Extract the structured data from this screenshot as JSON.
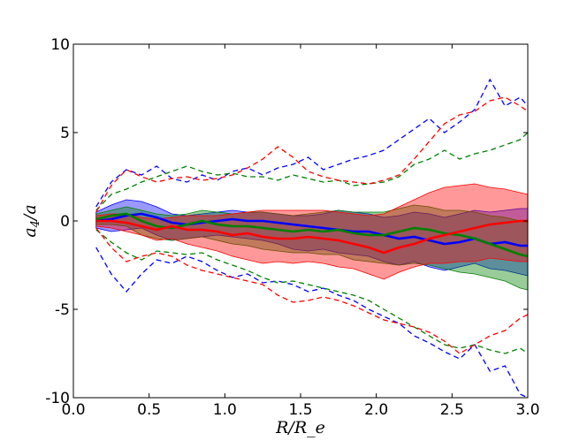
{
  "chart_data": {
    "type": "line",
    "xlabel": "R/R_e",
    "ylabel": "a_4/a",
    "xlim": [
      0.0,
      3.0
    ],
    "ylim": [
      -10,
      10
    ],
    "xticks": [
      0.0,
      0.5,
      1.0,
      1.5,
      2.0,
      2.5,
      3.0
    ],
    "xtick_labels": [
      "0.0",
      "0.5",
      "1.0",
      "1.5",
      "2.0",
      "2.5",
      "3.0"
    ],
    "yticks": [
      -10,
      -5,
      0,
      5,
      10
    ],
    "ytick_labels": [
      "-10",
      "-5",
      "0",
      "5",
      "10"
    ],
    "grid": false,
    "legend": "none",
    "series": [
      {
        "color": "#0000ff",
        "x": [
          0.15,
          0.25,
          0.35,
          0.45,
          0.55,
          0.65,
          0.75,
          0.85,
          0.95,
          1.05,
          1.15,
          1.25,
          1.35,
          1.45,
          1.55,
          1.65,
          1.75,
          1.85,
          1.95,
          2.05,
          2.15,
          2.25,
          2.35,
          2.45,
          2.55,
          2.65,
          2.75,
          2.85,
          2.95,
          3.0
        ],
        "median": [
          0.0,
          0.1,
          0.3,
          0.4,
          0.2,
          -0.1,
          -0.2,
          -0.1,
          0.0,
          0.1,
          0.0,
          0.0,
          -0.1,
          -0.2,
          -0.3,
          -0.4,
          -0.5,
          -0.6,
          -0.6,
          -0.8,
          -1.0,
          -0.9,
          -1.1,
          -1.3,
          -1.2,
          -1.0,
          -1.3,
          -1.2,
          -1.4,
          -1.4
        ],
        "band_low": [
          -0.4,
          -0.6,
          -0.5,
          -0.4,
          -0.8,
          -1.1,
          -1.0,
          -0.9,
          -0.8,
          -0.9,
          -1.0,
          -1.1,
          -1.3,
          -1.6,
          -1.7,
          -1.6,
          -1.8,
          -1.9,
          -2.0,
          -2.3,
          -2.5,
          -2.3,
          -2.6,
          -2.8,
          -2.6,
          -2.4,
          -2.7,
          -2.8,
          -3.0,
          -3.1
        ],
        "band_high": [
          0.5,
          0.9,
          1.2,
          1.1,
          0.8,
          0.4,
          0.3,
          0.4,
          0.5,
          0.6,
          0.5,
          0.5,
          0.4,
          0.3,
          0.3,
          0.4,
          0.6,
          0.5,
          0.4,
          0.2,
          0.3,
          0.5,
          0.4,
          0.2,
          0.4,
          0.6,
          0.5,
          0.6,
          0.7,
          0.7
        ],
        "upper_dashed": [
          0.8,
          2.2,
          2.9,
          2.6,
          3.1,
          2.4,
          2.2,
          2.6,
          2.3,
          2.8,
          3.0,
          2.6,
          3.0,
          3.2,
          3.6,
          2.9,
          3.2,
          3.5,
          3.7,
          4.0,
          4.6,
          5.2,
          5.8,
          5.0,
          5.6,
          6.3,
          8.0,
          6.5,
          7.0,
          6.5
        ],
        "lower_dashed": [
          -1.5,
          -3.0,
          -4.0,
          -3.0,
          -2.2,
          -2.4,
          -2.0,
          -2.3,
          -2.8,
          -3.2,
          -3.0,
          -3.5,
          -3.4,
          -3.6,
          -4.0,
          -3.8,
          -4.2,
          -4.5,
          -5.0,
          -5.4,
          -5.8,
          -6.5,
          -6.9,
          -7.4,
          -7.8,
          -7.0,
          -8.5,
          -8.2,
          -9.8,
          -10.0
        ]
      },
      {
        "color": "#008000",
        "x": [
          0.15,
          0.25,
          0.35,
          0.45,
          0.55,
          0.65,
          0.75,
          0.85,
          0.95,
          1.05,
          1.15,
          1.25,
          1.35,
          1.45,
          1.55,
          1.65,
          1.75,
          1.85,
          1.95,
          2.05,
          2.15,
          2.25,
          2.35,
          2.45,
          2.55,
          2.65,
          2.75,
          2.85,
          2.95,
          3.0
        ],
        "median": [
          0.1,
          0.3,
          0.4,
          0.0,
          -0.3,
          -0.4,
          -0.2,
          0.0,
          -0.2,
          -0.3,
          -0.3,
          -0.4,
          -0.5,
          -0.6,
          -0.5,
          -0.6,
          -0.5,
          -0.7,
          -0.8,
          -0.8,
          -0.6,
          -0.4,
          -0.5,
          -0.7,
          -0.8,
          -1.0,
          -1.3,
          -1.6,
          -1.9,
          -2.0
        ],
        "band_low": [
          -0.2,
          -0.2,
          -0.3,
          -0.8,
          -1.0,
          -1.1,
          -1.0,
          -0.9,
          -1.1,
          -1.3,
          -1.4,
          -1.6,
          -1.7,
          -1.8,
          -1.8,
          -1.9,
          -1.9,
          -2.2,
          -2.3,
          -2.4,
          -2.5,
          -2.4,
          -2.5,
          -2.7,
          -2.9,
          -3.0,
          -3.2,
          -3.4,
          -3.8,
          -3.9
        ],
        "band_high": [
          0.4,
          0.6,
          0.8,
          0.6,
          0.4,
          0.3,
          0.4,
          0.6,
          0.5,
          0.4,
          0.5,
          0.5,
          0.4,
          0.3,
          0.4,
          0.5,
          0.6,
          0.5,
          0.5,
          0.5,
          0.7,
          0.9,
          0.8,
          0.6,
          0.6,
          0.5,
          0.3,
          0.2,
          0.0,
          -0.1
        ],
        "upper_dashed": [
          0.6,
          1.5,
          1.8,
          2.2,
          2.5,
          2.8,
          3.1,
          2.8,
          2.6,
          2.7,
          2.5,
          2.5,
          2.3,
          2.6,
          2.4,
          2.2,
          2.3,
          2.0,
          2.1,
          2.2,
          2.5,
          3.2,
          3.5,
          4.0,
          3.5,
          3.8,
          4.0,
          4.3,
          4.6,
          5.0
        ],
        "lower_dashed": [
          -0.5,
          -1.2,
          -1.8,
          -2.2,
          -1.7,
          -1.8,
          -1.9,
          -1.8,
          -2.2,
          -2.5,
          -2.8,
          -3.2,
          -3.5,
          -3.4,
          -3.6,
          -3.8,
          -4.0,
          -4.2,
          -4.5,
          -5.0,
          -5.5,
          -6.0,
          -6.5,
          -7.0,
          -7.2,
          -7.0,
          -7.3,
          -7.5,
          -7.2,
          -7.5
        ]
      },
      {
        "color": "#ff0000",
        "x": [
          0.15,
          0.25,
          0.35,
          0.45,
          0.55,
          0.65,
          0.75,
          0.85,
          0.95,
          1.05,
          1.15,
          1.25,
          1.35,
          1.45,
          1.55,
          1.65,
          1.75,
          1.85,
          1.95,
          2.05,
          2.15,
          2.25,
          2.35,
          2.45,
          2.55,
          2.65,
          2.75,
          2.85,
          2.95,
          3.0
        ],
        "median": [
          0.0,
          0.0,
          -0.1,
          -0.3,
          -0.5,
          -0.3,
          -0.5,
          -0.5,
          -0.6,
          -0.8,
          -0.7,
          -0.9,
          -1.0,
          -1.0,
          -0.9,
          -1.0,
          -1.1,
          -1.3,
          -1.5,
          -1.8,
          -1.5,
          -1.3,
          -1.0,
          -0.8,
          -0.6,
          -0.4,
          -0.2,
          -0.1,
          0.0,
          0.0
        ],
        "band_low": [
          -0.3,
          -0.4,
          -0.6,
          -0.8,
          -1.1,
          -1.0,
          -1.3,
          -1.5,
          -1.7,
          -2.0,
          -2.2,
          -2.4,
          -2.3,
          -2.4,
          -2.3,
          -2.4,
          -2.6,
          -2.7,
          -3.0,
          -3.3,
          -2.9,
          -2.6,
          -2.4,
          -2.4,
          -2.3,
          -2.3,
          -2.1,
          -2.2,
          -2.3,
          -2.3
        ],
        "band_high": [
          0.3,
          0.4,
          0.4,
          0.2,
          0.1,
          0.2,
          0.3,
          0.3,
          0.3,
          0.4,
          0.5,
          0.6,
          0.6,
          0.6,
          0.6,
          0.6,
          0.5,
          0.4,
          0.3,
          0.4,
          0.8,
          1.2,
          1.6,
          1.9,
          2.0,
          2.1,
          1.9,
          1.8,
          1.6,
          1.5
        ],
        "upper_dashed": [
          0.5,
          2.0,
          2.9,
          2.5,
          2.2,
          2.4,
          2.5,
          2.3,
          2.4,
          2.6,
          3.0,
          3.5,
          4.2,
          3.6,
          2.8,
          2.5,
          2.3,
          2.2,
          2.1,
          2.3,
          2.6,
          3.5,
          4.5,
          5.5,
          6.0,
          6.2,
          6.8,
          7.0,
          6.5,
          6.2
        ],
        "lower_dashed": [
          -0.4,
          -1.5,
          -2.3,
          -2.0,
          -1.8,
          -2.0,
          -2.5,
          -2.8,
          -3.0,
          -3.2,
          -3.4,
          -3.6,
          -4.2,
          -4.6,
          -4.5,
          -4.3,
          -4.5,
          -4.8,
          -5.2,
          -5.6,
          -5.8,
          -6.0,
          -6.3,
          -6.8,
          -7.5,
          -7.0,
          -6.5,
          -6.2,
          -5.5,
          -5.3
        ]
      }
    ]
  }
}
